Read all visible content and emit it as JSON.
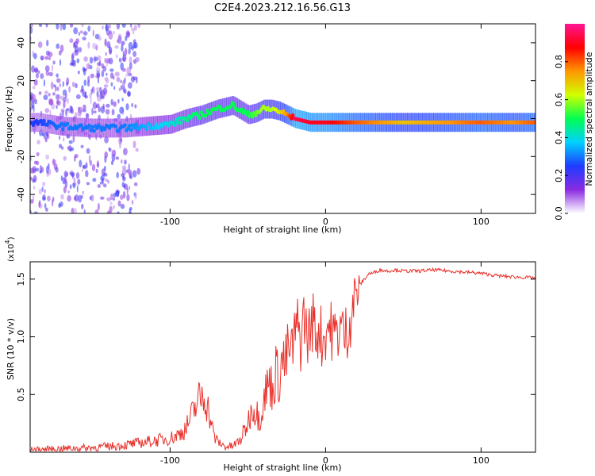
{
  "title": "C2E4.2023.212.16.56.G13",
  "chart_data": [
    {
      "type": "heatmap",
      "xlabel": "Height of straight line (km)",
      "ylabel": "Frequency (Hz)",
      "xlim": [
        -190,
        135
      ],
      "ylim": [
        -50,
        50
      ],
      "xticks": [
        -100,
        0,
        100
      ],
      "yticks": [
        -40,
        -20,
        0,
        20,
        40
      ],
      "colorbar": {
        "label": "Normalized spectral amplitude",
        "range": [
          0,
          1
        ],
        "ticks": [
          "0.0",
          "0.2",
          "0.4",
          "0.6",
          "0.8"
        ],
        "tick_values": [
          0,
          0.2,
          0.4,
          0.6,
          0.8
        ],
        "colors": [
          "#ffffff",
          "#8a2be2",
          "#1e3cff",
          "#00d2ff",
          "#00ff50",
          "#d2ff00",
          "#ff9600",
          "#ff0000",
          "#ff1493"
        ]
      },
      "ridge": {
        "x": [
          -185,
          -170,
          -150,
          -130,
          -115,
          -100,
          -90,
          -80,
          -70,
          -60,
          -50,
          -45,
          -40,
          -35,
          -30,
          -25,
          -20,
          -10,
          0,
          20,
          50,
          80,
          100,
          120,
          135
        ],
        "y": [
          -2,
          -4,
          -5,
          -5,
          -4,
          -3,
          0,
          2,
          5,
          7,
          2,
          3,
          5,
          5,
          4,
          2,
          0,
          -2,
          -2,
          -2,
          -2,
          -2,
          -2,
          -2,
          -2
        ],
        "amplitude": [
          0.25,
          0.3,
          0.3,
          0.3,
          0.35,
          0.4,
          0.45,
          0.5,
          0.5,
          0.5,
          0.5,
          0.55,
          0.6,
          0.6,
          0.65,
          0.75,
          0.95,
          0.9,
          0.9,
          0.8,
          0.7,
          0.75,
          0.8,
          0.75,
          0.8
        ]
      }
    },
    {
      "type": "line",
      "xlabel": "Height of straight line (km)",
      "ylabel": "SNR (10 * v/v)",
      "exponent_label": "(x10",
      "exponent_power": "4",
      "exponent_close": ")",
      "xlim": [
        -190,
        135
      ],
      "ylim": [
        0,
        1.65
      ],
      "xticks": [
        -100,
        0,
        100
      ],
      "yticks": [
        0.5,
        1.0,
        1.5
      ],
      "ytick_labels": [
        "0.5",
        "1.0",
        "1.5"
      ],
      "series": [
        {
          "color": "#e8302a",
          "x": [
            -190,
            -170,
            -150,
            -130,
            -120,
            -110,
            -100,
            -95,
            -90,
            -85,
            -82,
            -78,
            -75,
            -72,
            -70,
            -65,
            -60,
            -55,
            -50,
            -47,
            -45,
            -42,
            -40,
            -38,
            -36,
            -34,
            -32,
            -30,
            -28,
            -26,
            -24,
            -22,
            -20,
            -18,
            -16,
            -14,
            -12,
            -10,
            -8,
            -6,
            -4,
            -2,
            0,
            2,
            4,
            6,
            8,
            10,
            12,
            15,
            18,
            20,
            22,
            25,
            28,
            30,
            35,
            40,
            45,
            50,
            60,
            70,
            80,
            90,
            100,
            110,
            120,
            135
          ],
          "y": [
            0.02,
            0.03,
            0.04,
            0.06,
            0.08,
            0.1,
            0.12,
            0.15,
            0.2,
            0.35,
            0.45,
            0.5,
            0.35,
            0.15,
            0.1,
            0.05,
            0.05,
            0.1,
            0.25,
            0.4,
            0.35,
            0.3,
            0.45,
            0.55,
            0.6,
            0.55,
            0.7,
            0.65,
            0.8,
            0.75,
            0.9,
            0.85,
            1.0,
            1.1,
            0.95,
            1.2,
            1.0,
            1.05,
            1.15,
            1.0,
            1.1,
            0.95,
            1.05,
            1.1,
            1.05,
            1.0,
            1.05,
            1.1,
            1.0,
            1.1,
            1.3,
            1.4,
            1.45,
            1.5,
            1.55,
            1.55,
            1.58,
            1.57,
            1.58,
            1.57,
            1.57,
            1.58,
            1.57,
            1.56,
            1.55,
            1.53,
            1.52,
            1.51
          ]
        }
      ]
    }
  ]
}
